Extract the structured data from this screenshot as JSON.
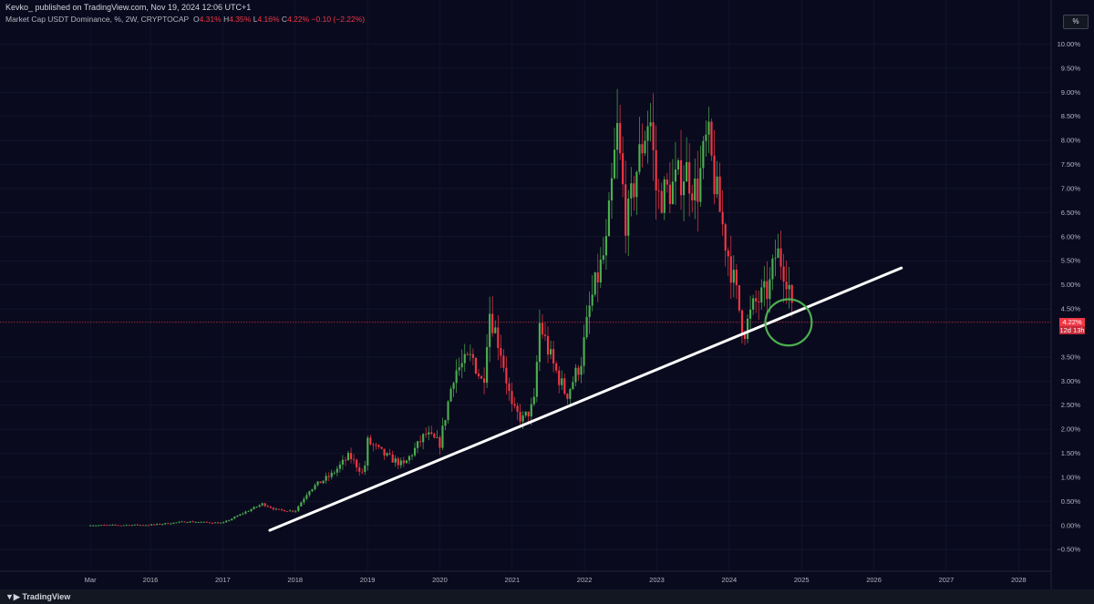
{
  "header": {
    "published": "Kevko_ published on TradingView.com, Nov 19, 2024 12:06 UTC+1"
  },
  "legend": {
    "name": "Market Cap USDT Dominance, %, 2W, CRYPTOCAP",
    "o_label": "O",
    "o_value": "4.31%",
    "h_label": "H",
    "h_value": "4.35%",
    "l_label": "L",
    "l_value": "4.16%",
    "c_label": "C",
    "c_value": "4.22%",
    "change": "−0.10 (−2.22%)"
  },
  "scale_button": "%",
  "price_tag": {
    "value": "4.22%",
    "countdown": "12d 13h",
    "value_num": 4.22
  },
  "footer": {
    "brand": "TradingView"
  },
  "colors": {
    "up": "#26a69a",
    "up_body": "#4caf50",
    "down": "#f23645",
    "background": "#0a0a1e",
    "trendline": "#ffffff",
    "circle": "#4caf50"
  },
  "chart_data": {
    "type": "candlestick",
    "xlim": [
      2015.08,
      2028.45
    ],
    "ylim": [
      -0.95,
      10.35
    ],
    "y_ticks": [
      {
        "v": 10.0,
        "label": "10.00%"
      },
      {
        "v": 9.5,
        "label": "9.50%"
      },
      {
        "v": 9.0,
        "label": "9.00%"
      },
      {
        "v": 8.5,
        "label": "8.50%"
      },
      {
        "v": 8.0,
        "label": "8.00%"
      },
      {
        "v": 7.5,
        "label": "7.50%"
      },
      {
        "v": 7.0,
        "label": "7.00%"
      },
      {
        "v": 6.5,
        "label": "6.50%"
      },
      {
        "v": 6.0,
        "label": "6.00%"
      },
      {
        "v": 5.5,
        "label": "5.50%"
      },
      {
        "v": 5.0,
        "label": "5.00%"
      },
      {
        "v": 4.5,
        "label": "4.50%"
      },
      {
        "v": 3.5,
        "label": "3.50%"
      },
      {
        "v": 3.0,
        "label": "3.00%"
      },
      {
        "v": 2.5,
        "label": "2.50%"
      },
      {
        "v": 2.0,
        "label": "2.00%"
      },
      {
        "v": 1.5,
        "label": "1.50%"
      },
      {
        "v": 1.0,
        "label": "1.00%"
      },
      {
        "v": 0.5,
        "label": "0.50%"
      },
      {
        "v": 0.0,
        "label": "0.00%"
      },
      {
        "v": -0.5,
        "label": "−0.50%"
      }
    ],
    "x_ticks": [
      {
        "v": 2015.17,
        "label": "Mar"
      },
      {
        "v": 2016,
        "label": "2016"
      },
      {
        "v": 2017,
        "label": "2017"
      },
      {
        "v": 2018,
        "label": "2018"
      },
      {
        "v": 2019,
        "label": "2019"
      },
      {
        "v": 2020,
        "label": "2020"
      },
      {
        "v": 2021,
        "label": "2021"
      },
      {
        "v": 2022,
        "label": "2022"
      },
      {
        "v": 2023,
        "label": "2023"
      },
      {
        "v": 2024,
        "label": "2024"
      },
      {
        "v": 2025,
        "label": "2025"
      },
      {
        "v": 2026,
        "label": "2026"
      },
      {
        "v": 2027,
        "label": "2027"
      },
      {
        "v": 2028,
        "label": "2028"
      }
    ],
    "anchors": [
      [
        2015.17,
        0.0
      ],
      [
        2016.0,
        0.01
      ],
      [
        2016.5,
        0.08
      ],
      [
        2017.0,
        0.05
      ],
      [
        2017.2,
        0.2
      ],
      [
        2017.55,
        0.45
      ],
      [
        2017.75,
        0.32
      ],
      [
        2018.0,
        0.3
      ],
      [
        2018.2,
        0.75
      ],
      [
        2018.5,
        1.05
      ],
      [
        2018.75,
        1.45
      ],
      [
        2018.95,
        1.05
      ],
      [
        2019.0,
        1.75
      ],
      [
        2019.25,
        1.45
      ],
      [
        2019.5,
        1.25
      ],
      [
        2019.8,
        1.9
      ],
      [
        2020.0,
        1.7
      ],
      [
        2020.2,
        3.2
      ],
      [
        2020.45,
        3.5
      ],
      [
        2020.6,
        2.9
      ],
      [
        2020.68,
        4.5
      ],
      [
        2020.85,
        3.6
      ],
      [
        2021.0,
        2.4
      ],
      [
        2021.15,
        2.2
      ],
      [
        2021.3,
        2.5
      ],
      [
        2021.38,
        4.2
      ],
      [
        2021.55,
        3.4
      ],
      [
        2021.75,
        2.7
      ],
      [
        2021.95,
        3.4
      ],
      [
        2022.08,
        4.6
      ],
      [
        2022.3,
        5.8
      ],
      [
        2022.45,
        8.2
      ],
      [
        2022.58,
        6.2
      ],
      [
        2022.72,
        7.4
      ],
      [
        2022.9,
        8.6
      ],
      [
        2023.0,
        6.8
      ],
      [
        2023.2,
        7.0
      ],
      [
        2023.4,
        7.4
      ],
      [
        2023.55,
        6.9
      ],
      [
        2023.7,
        8.1
      ],
      [
        2023.8,
        7.1
      ],
      [
        2023.95,
        5.9
      ],
      [
        2024.1,
        4.8
      ],
      [
        2024.2,
        4.0
      ],
      [
        2024.35,
        4.6
      ],
      [
        2024.55,
        4.9
      ],
      [
        2024.65,
        5.7
      ],
      [
        2024.72,
        5.5
      ],
      [
        2024.82,
        5.1
      ],
      [
        2024.88,
        4.22
      ]
    ],
    "trendline": {
      "start": [
        2017.65,
        -0.1
      ],
      "end": [
        2026.38,
        5.35
      ],
      "color": "#ffffff"
    },
    "circle_marker": {
      "center": [
        2024.82,
        4.22
      ],
      "radius_years": 0.32,
      "color": "#4caf50"
    },
    "last_price_line": 4.22
  }
}
